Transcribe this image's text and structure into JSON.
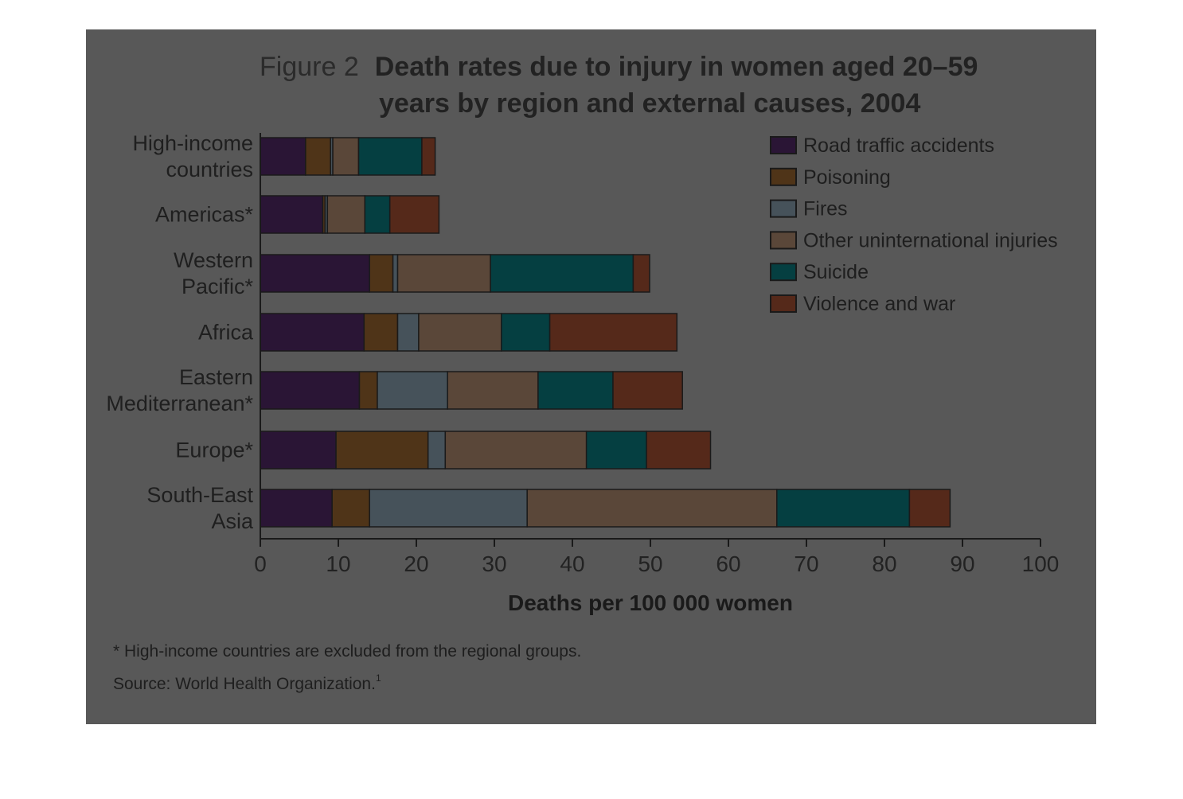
{
  "figure": {
    "label": "Figure 2",
    "title_line1": "Death rates due to injury in women aged 20–59",
    "title_line2": "years by region and external causes, 2004"
  },
  "notes": {
    "footnote": "* High-income countries are excluded from the regional groups.",
    "source": "Source: World Health Organization.",
    "source_sup": "1"
  },
  "chart_data": {
    "type": "bar",
    "orientation": "horizontal",
    "stacked": true,
    "title": "Death rates due to injury in women aged 20–59 years by region and external causes, 2004",
    "xlabel": "Deaths per 100 000 women",
    "ylabel": "",
    "xlim": [
      0,
      100
    ],
    "xticks": [
      0,
      10,
      20,
      30,
      40,
      50,
      60,
      70,
      80,
      90,
      100
    ],
    "grid": false,
    "legend_position": "top-right",
    "categories": [
      [
        "High-income",
        "countries"
      ],
      [
        "Americas*"
      ],
      [
        "Western",
        "Pacific*"
      ],
      [
        "Africa"
      ],
      [
        "Eastern",
        "Mediterranean*"
      ],
      [
        "Europe*"
      ],
      [
        "South-East",
        "Asia"
      ]
    ],
    "series": [
      {
        "name": "Road traffic accidents",
        "color": "#2a1535",
        "values": [
          5.8,
          8.0,
          14.0,
          13.3,
          12.7,
          9.7,
          9.2
        ]
      },
      {
        "name": "Poisoning",
        "color": "#4f3418",
        "values": [
          3.2,
          0.3,
          3.0,
          4.3,
          2.3,
          11.8,
          4.8
        ]
      },
      {
        "name": "Fires",
        "color": "#46525a",
        "values": [
          0.3,
          0.3,
          0.6,
          2.7,
          9.0,
          2.2,
          20.2
        ]
      },
      {
        "name": "Other uninternational injuries",
        "color": "#5a4739",
        "values": [
          3.3,
          4.8,
          11.9,
          10.6,
          11.6,
          18.1,
          32.0
        ]
      },
      {
        "name": "Suicide",
        "color": "#053f41",
        "values": [
          8.1,
          3.2,
          18.3,
          6.2,
          9.6,
          7.7,
          17.0
        ]
      },
      {
        "name": "Violence and war",
        "color": "#55291a",
        "values": [
          1.7,
          6.3,
          2.1,
          16.3,
          8.9,
          8.2,
          5.2
        ]
      }
    ]
  }
}
